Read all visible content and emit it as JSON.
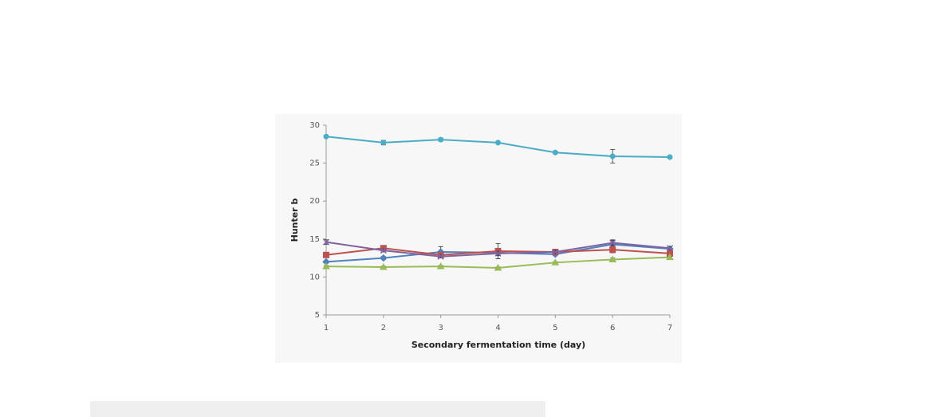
{
  "chart_data": {
    "type": "line",
    "x_label": "Secondary fermentation time (day)",
    "y_label": "Hunter b",
    "x": [
      1,
      2,
      3,
      4,
      5,
      6,
      7
    ],
    "xlim": [
      1,
      7
    ],
    "xticks": [
      1,
      2,
      3,
      4,
      5,
      6,
      7
    ],
    "ylim": [
      5,
      30
    ],
    "yticks": [
      5,
      10,
      15,
      20,
      25,
      30
    ],
    "series": [
      {
        "color": "#4bacc6",
        "marker": "circle",
        "values": [
          28.5,
          27.7,
          28.1,
          27.7,
          26.4,
          25.9,
          25.8
        ],
        "errors": [
          0.1,
          0.3,
          0.2,
          0.1,
          0.1,
          0.9,
          0.1
        ]
      },
      {
        "color": "#4f81bd",
        "marker": "diamond",
        "values": [
          12.0,
          12.5,
          13.3,
          13.2,
          13.0,
          14.3,
          13.7
        ],
        "errors": [
          0.1,
          0.2,
          0.7,
          0.3,
          0.2,
          0.6,
          0.2
        ]
      },
      {
        "color": "#c0504d",
        "marker": "square",
        "values": [
          12.9,
          13.8,
          12.9,
          13.4,
          13.3,
          13.6,
          13.1
        ],
        "errors": [
          0.1,
          0.2,
          0.3,
          1.0,
          0.2,
          0.4,
          0.2
        ]
      },
      {
        "color": "#8064a2",
        "marker": "cross",
        "values": [
          14.6,
          13.5,
          12.7,
          13.1,
          13.3,
          14.5,
          13.8
        ],
        "errors": [
          0.3,
          0.2,
          0.2,
          0.3,
          0.2,
          0.3,
          0.2
        ]
      },
      {
        "color": "#9bbb59",
        "marker": "triangle",
        "values": [
          11.4,
          11.3,
          11.4,
          11.2,
          11.9,
          12.3,
          12.6
        ],
        "errors": [
          0.1,
          0.1,
          0.1,
          0.1,
          0.1,
          0.2,
          0.1
        ]
      }
    ]
  }
}
